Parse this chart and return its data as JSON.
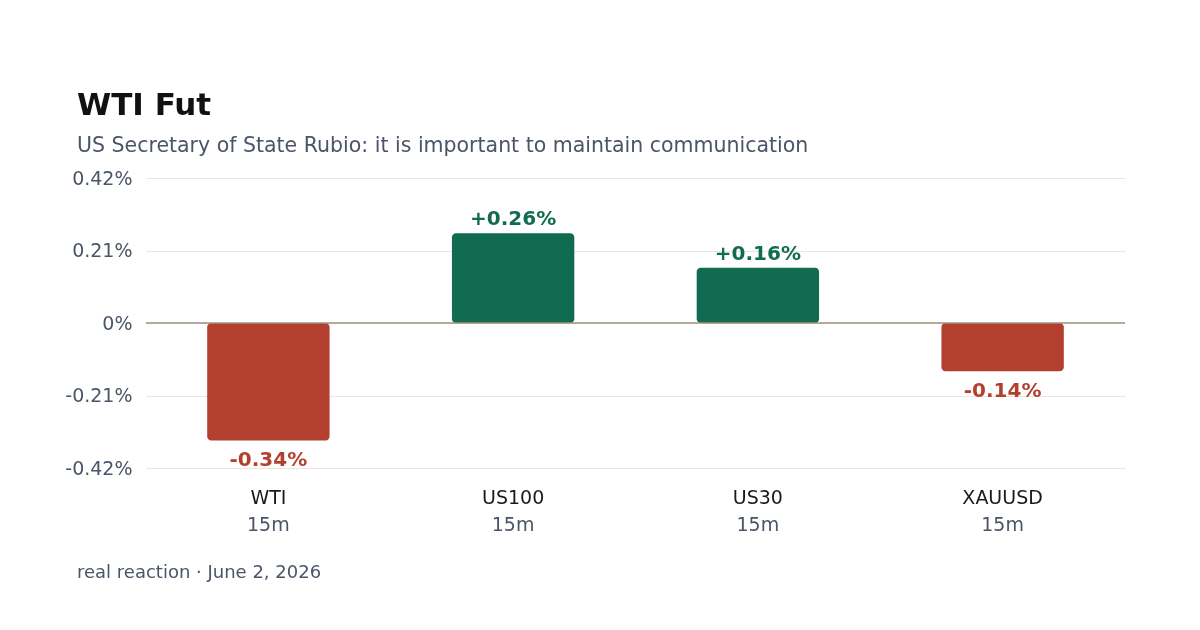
{
  "chart_data": {
    "type": "bar",
    "title": "WTI Fut",
    "subtitle": "US Secretary of State Rubio: it is important to maintain communication",
    "categories": [
      "WTI\n15m",
      "US100\n15m",
      "US30\n15m",
      "XAUUSD\n15m"
    ],
    "values": [
      -0.34,
      0.26,
      0.16,
      -0.14
    ],
    "colors": [
      "#b3402f",
      "#106b50",
      "#106b50",
      "#b3402f"
    ],
    "value_labels": [
      "-0.34%",
      "+0.26%",
      "+0.16%",
      "-0.14%"
    ],
    "ylim": [
      -0.42,
      0.42
    ],
    "yticks": [
      {
        "value": 0.42,
        "label": "0.42%"
      },
      {
        "value": 0.21,
        "label": "0.21%"
      },
      {
        "value": 0,
        "label": "0%"
      },
      {
        "value": -0.21,
        "label": "-0.21%"
      },
      {
        "value": -0.42,
        "label": "-0.42%"
      }
    ],
    "grid": "y",
    "ref_lines": [
      {
        "axis": "y",
        "value": 0,
        "color": "#9c927f"
      }
    ],
    "annotations": [
      "real reaction · June 2, 2026"
    ]
  }
}
